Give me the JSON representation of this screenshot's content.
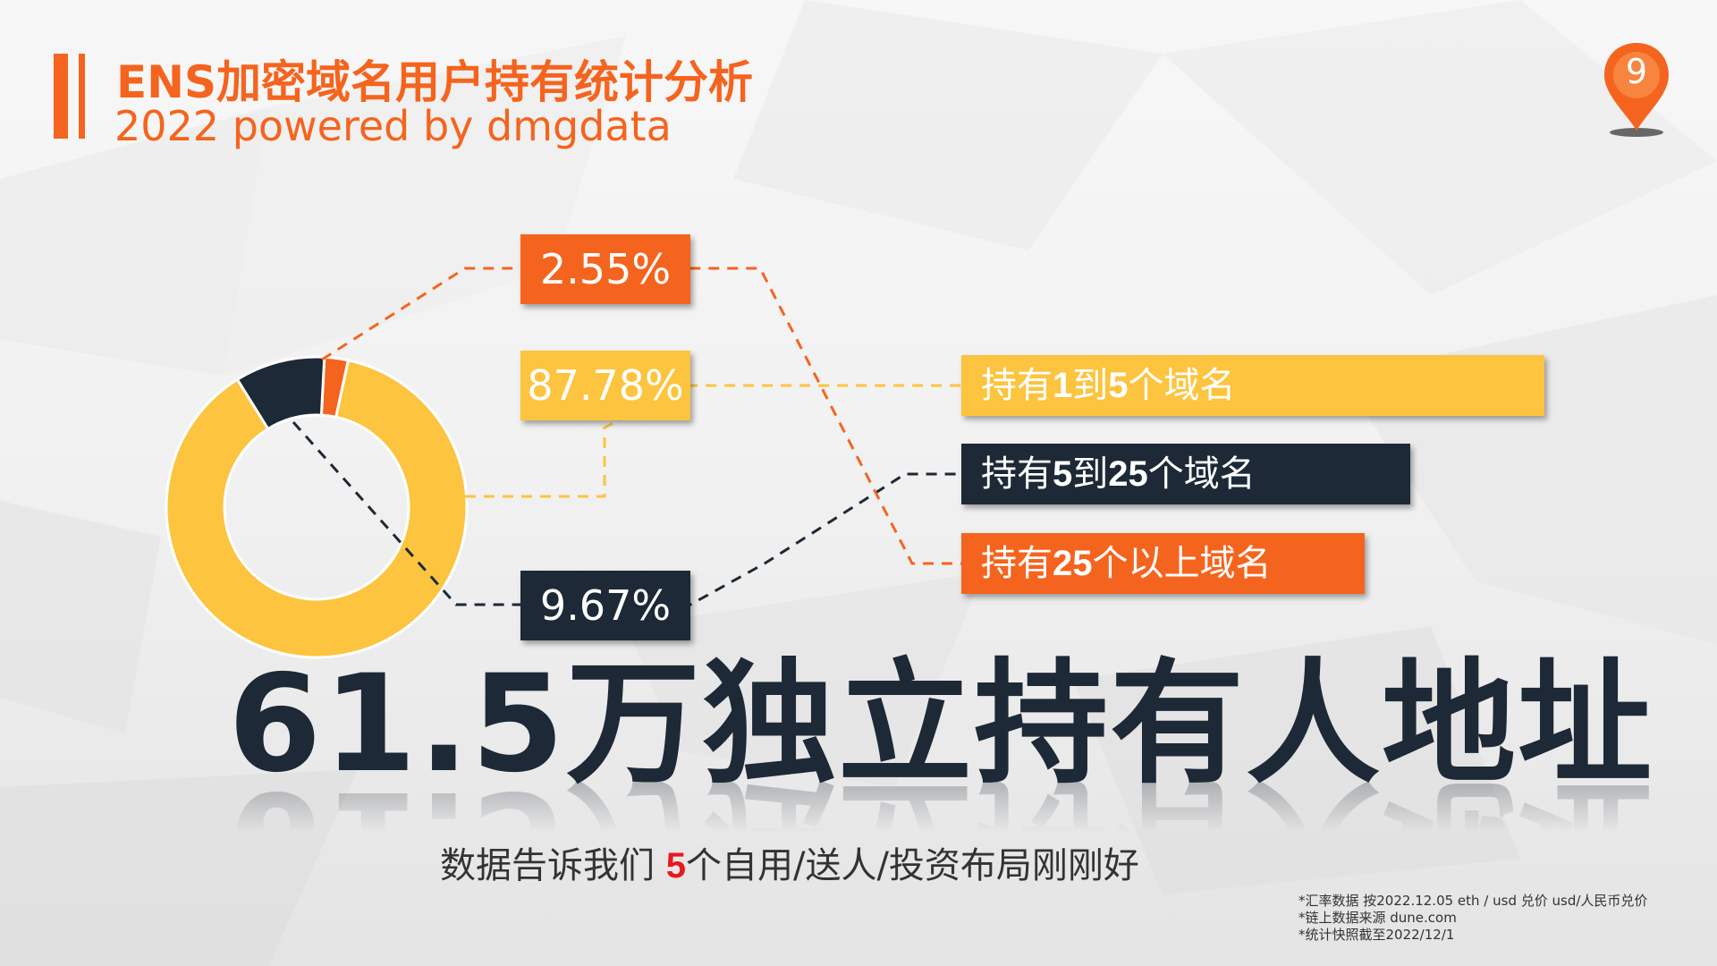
{
  "header": {
    "title": "ENS加密域名用户持有统计分析",
    "subtitle": "2022 powered by dmgdata",
    "page_number": "9"
  },
  "colors": {
    "orange": "#f5641e",
    "yellow": "#fcc43f",
    "navy": "#1d2936"
  },
  "chart_data": {
    "type": "pie",
    "donut": true,
    "slices": [
      {
        "label": "持有1到5个域名",
        "label_parts": [
          "持有",
          "1",
          "到",
          "5",
          "个域名"
        ],
        "value": 87.78,
        "value_label": "87.78%",
        "color": "#fcc43f"
      },
      {
        "label": "持有5到25个域名",
        "label_parts": [
          "持有",
          "5",
          "到",
          "25",
          "个域名"
        ],
        "value": 9.67,
        "value_label": "9.67%",
        "color": "#1d2936"
      },
      {
        "label": "持有25个以上域名",
        "label_parts": [
          "持有",
          "25",
          "个以上域名",
          "",
          ""
        ],
        "value": 2.55,
        "value_label": "2.55%",
        "color": "#f5641e"
      }
    ]
  },
  "headline": "61.5万独立持有人地址",
  "tagline": {
    "before": "数据告诉我们 ",
    "highlight": "5",
    "after": "个自用/送人/投资布局刚刚好"
  },
  "notes": [
    "*汇率数据 按2022.12.05 eth / usd 兑价 usd/人民币兑价",
    "*链上数据来源 dune.com",
    "*统计快照截至2022/12/1"
  ]
}
